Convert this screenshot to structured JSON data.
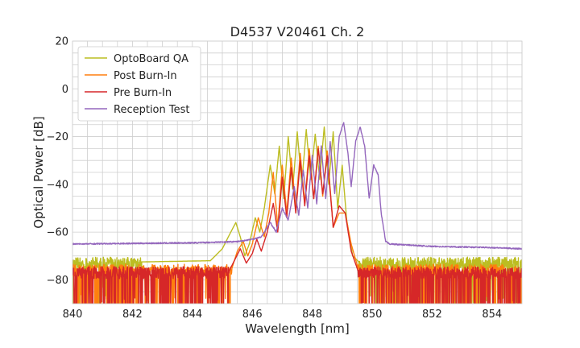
{
  "chart_data": {
    "type": "line",
    "title": "D4537 V20461 Ch. 2",
    "xlabel": "Wavelength [nm]",
    "ylabel": "Optical Power [dB]",
    "xlim": [
      840,
      855
    ],
    "ylim": [
      -90,
      20
    ],
    "x_ticks": [
      840,
      842,
      844,
      846,
      848,
      850,
      852,
      854
    ],
    "y_ticks": [
      -80,
      -60,
      -40,
      -20,
      0,
      20
    ],
    "x_tick_labels": [
      "840",
      "842",
      "844",
      "846",
      "848",
      "850",
      "852",
      "854"
    ],
    "y_tick_labels": [
      "−80",
      "−60",
      "−40",
      "−20",
      "0",
      "20"
    ],
    "grid": true,
    "legend_position": "top-left",
    "series": [
      {
        "name": "OptoBoard QA",
        "color": "#bcbd22",
        "noise_floor": -73,
        "points": [
          [
            840.0,
            -73
          ],
          [
            844.6,
            -72
          ],
          [
            845.0,
            -67
          ],
          [
            845.2,
            -62
          ],
          [
            845.45,
            -56
          ],
          [
            845.6,
            -62
          ],
          [
            845.75,
            -70
          ],
          [
            845.9,
            -65
          ],
          [
            846.1,
            -54
          ],
          [
            846.25,
            -60
          ],
          [
            846.4,
            -50
          ],
          [
            846.6,
            -32
          ],
          [
            846.75,
            -44
          ],
          [
            846.9,
            -24
          ],
          [
            847.05,
            -46
          ],
          [
            847.2,
            -20
          ],
          [
            847.35,
            -42
          ],
          [
            847.5,
            -18
          ],
          [
            847.65,
            -40
          ],
          [
            847.8,
            -17
          ],
          [
            847.95,
            -38
          ],
          [
            848.1,
            -19
          ],
          [
            848.25,
            -38
          ],
          [
            848.4,
            -16
          ],
          [
            848.55,
            -40
          ],
          [
            848.7,
            -18
          ],
          [
            848.85,
            -50
          ],
          [
            849.0,
            -32
          ],
          [
            849.15,
            -55
          ],
          [
            849.35,
            -70
          ],
          [
            849.6,
            -73
          ],
          [
            855.0,
            -73
          ]
        ]
      },
      {
        "name": "Post Burn-In",
        "color": "#ff7f0e",
        "noise_floor": -76,
        "points": [
          [
            840.0,
            -76
          ],
          [
            845.3,
            -76
          ],
          [
            845.5,
            -68
          ],
          [
            845.7,
            -64
          ],
          [
            845.85,
            -70
          ],
          [
            846.0,
            -65
          ],
          [
            846.2,
            -54
          ],
          [
            846.4,
            -62
          ],
          [
            846.55,
            -52
          ],
          [
            846.7,
            -35
          ],
          [
            846.85,
            -58
          ],
          [
            847.0,
            -32
          ],
          [
            847.15,
            -52
          ],
          [
            847.3,
            -29
          ],
          [
            847.45,
            -50
          ],
          [
            847.6,
            -27
          ],
          [
            847.75,
            -48
          ],
          [
            847.9,
            -25
          ],
          [
            848.05,
            -46
          ],
          [
            848.2,
            -24
          ],
          [
            848.35,
            -45
          ],
          [
            848.5,
            -26
          ],
          [
            848.7,
            -58
          ],
          [
            848.9,
            -52
          ],
          [
            849.1,
            -52
          ],
          [
            849.3,
            -65
          ],
          [
            849.55,
            -76
          ],
          [
            855.0,
            -76
          ]
        ]
      },
      {
        "name": "Pre Burn-In",
        "color": "#d62728",
        "noise_floor": -77,
        "points": [
          [
            840.0,
            -77
          ],
          [
            845.2,
            -77
          ],
          [
            845.4,
            -72
          ],
          [
            845.6,
            -67
          ],
          [
            845.8,
            -73
          ],
          [
            846.0,
            -69
          ],
          [
            846.15,
            -63
          ],
          [
            846.3,
            -68
          ],
          [
            846.5,
            -60
          ],
          [
            846.7,
            -48
          ],
          [
            846.85,
            -60
          ],
          [
            847.0,
            -37
          ],
          [
            847.15,
            -54
          ],
          [
            847.3,
            -33
          ],
          [
            847.45,
            -52
          ],
          [
            847.6,
            -30
          ],
          [
            847.75,
            -49
          ],
          [
            847.9,
            -28
          ],
          [
            848.05,
            -46
          ],
          [
            848.2,
            -25
          ],
          [
            848.35,
            -44
          ],
          [
            848.5,
            -28
          ],
          [
            848.7,
            -58
          ],
          [
            848.9,
            -49
          ],
          [
            849.1,
            -52
          ],
          [
            849.3,
            -68
          ],
          [
            849.55,
            -77
          ],
          [
            855.0,
            -77
          ]
        ]
      },
      {
        "name": "Reception Test",
        "color": "#9467bd",
        "noise_floor": null,
        "points": [
          [
            840.0,
            -65
          ],
          [
            844.0,
            -64.5
          ],
          [
            845.5,
            -64
          ],
          [
            846.0,
            -63
          ],
          [
            846.3,
            -62
          ],
          [
            846.6,
            -56
          ],
          [
            846.8,
            -60
          ],
          [
            847.0,
            -50
          ],
          [
            847.2,
            -55
          ],
          [
            847.4,
            -41
          ],
          [
            847.55,
            -53
          ],
          [
            847.7,
            -34
          ],
          [
            847.85,
            -50
          ],
          [
            848.0,
            -28
          ],
          [
            848.15,
            -48
          ],
          [
            848.3,
            -24
          ],
          [
            848.45,
            -46
          ],
          [
            848.6,
            -22
          ],
          [
            848.75,
            -44
          ],
          [
            848.9,
            -20
          ],
          [
            849.05,
            -14
          ],
          [
            849.2,
            -28
          ],
          [
            849.3,
            -41
          ],
          [
            849.45,
            -22
          ],
          [
            849.6,
            -16
          ],
          [
            849.75,
            -24
          ],
          [
            849.9,
            -46
          ],
          [
            850.05,
            -32
          ],
          [
            850.2,
            -36
          ],
          [
            850.3,
            -52
          ],
          [
            850.45,
            -64
          ],
          [
            850.6,
            -65
          ],
          [
            852.0,
            -66
          ],
          [
            854.0,
            -66.5
          ],
          [
            855.0,
            -67
          ]
        ]
      }
    ]
  }
}
